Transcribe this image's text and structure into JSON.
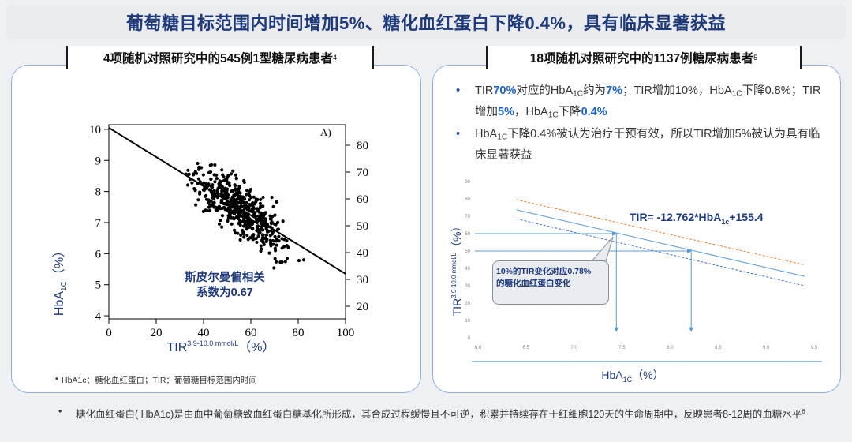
{
  "title": "葡萄糖目标范围内时间增加5%、糖化血红蛋白下降0.4%，具有临床显著获益",
  "left_panel": {
    "heading": "4项随机对照研究中的545例1型糖尿病患者",
    "heading_ref": "4",
    "annotation": [
      "斯皮尔曼偏相关",
      "系数为0.67"
    ],
    "footnote": "HbA1c：糖化血红蛋白；TIR：葡萄糖目标范围内时间"
  },
  "right_panel": {
    "heading": "18项随机对照研究中的1137例糖尿病患者",
    "heading_ref": "5",
    "bullet1": {
      "p1": "TIR",
      "p2": "70%",
      "p3": "对应的HbA",
      "p4": "1C",
      "p5": "约为",
      "p6": "7%",
      "p7": "；TIR增加10%，HbA",
      "p8": "1C",
      "p9": "下降0.8%；TIR增加",
      "p10": "5%",
      "p11": "，HbA",
      "p12": "1C",
      "p13": "下降",
      "p14": "0.4%"
    },
    "bullet2": {
      "p1": "HbA",
      "p2": "1C",
      "p3": "下降0.4%被认为治疗干预有效，所以TIR增加5%被认为具有临床显著获益"
    },
    "equation": {
      "p1": "TIR= -12.762*HbA",
      "p2": "1c",
      "p3": "+155.4"
    },
    "callout": [
      "10%的TIR变化对应0.78%",
      "的糖化血红蛋白变化"
    ]
  },
  "bottom_note": {
    "text": "糖化血红蛋白( HbA1c)是由血中葡萄糖致血红蛋白糖基化所形成，其合成过程缓慢且不可逆，积累并持续存在于红细胞120天的生命周期中，反映患者8-12周的血糖水平",
    "ref": "6"
  },
  "chart_data": [
    {
      "type": "scatter",
      "title": "A)",
      "xlabel": "TIR3.9-10.0 mmol/L (%)",
      "xlabel_main": "TIR",
      "xlabel_sup": "3.9-10.0 mmol/L",
      "xlabel_unit": "（%）",
      "ylabel": "HbA1C (%)",
      "ylabel_main": "HbA",
      "ylabel_sub": "1C",
      "ylabel_unit": "（%）",
      "xlim": [
        0,
        100
      ],
      "ylim": [
        4,
        10
      ],
      "x_ticks": [
        "0",
        "20",
        "40",
        "60",
        "80",
        "100"
      ],
      "y_ticks": [
        "4",
        "5",
        "6",
        "7",
        "8",
        "9",
        "10"
      ],
      "y2_ticks": [
        "20",
        "30",
        "40",
        "50",
        "60",
        "70",
        "80"
      ],
      "y2lim": [
        20,
        85
      ],
      "regression": {
        "x": [
          0,
          100
        ],
        "y": [
          10.05,
          5.35
        ]
      },
      "points_note": "545 patient points scattered along the regression line"
    },
    {
      "type": "line",
      "xlabel": "HbA1C (%)",
      "xlabel_main": "HbA",
      "xlabel_sub": "1C",
      "xlabel_unit": "（%）",
      "ylabel_main": "TIR",
      "ylabel_sup": "3.9-10.0 mmol/L",
      "ylabel_unit": "（%）",
      "xlim": [
        6.0,
        9.5
      ],
      "ylim": [
        0,
        90
      ],
      "x_ticks": [
        "6.0",
        "6.5",
        "7.0",
        "7.5",
        "8.0",
        "8.5",
        "9.0",
        "9.5"
      ],
      "y_ticks": [
        "0",
        "10",
        "20",
        "30",
        "40",
        "50",
        "60",
        "70",
        "80",
        "90"
      ],
      "series": [
        {
          "name": "fit",
          "x": [
            6.4,
            9.4
          ],
          "y": [
            73.7,
            35.4
          ],
          "style": "solid",
          "color": "#5b9bd5"
        },
        {
          "name": "upper CI",
          "x": [
            6.4,
            9.4
          ],
          "y": [
            79.5,
            42.0
          ],
          "style": "dashed",
          "color": "#ed7d31"
        },
        {
          "name": "lower CI",
          "x": [
            6.4,
            9.4
          ],
          "y": [
            68.5,
            30.0
          ],
          "style": "dashed",
          "color": "#4472c4"
        }
      ],
      "guides": [
        {
          "tir": 60,
          "hba1c": 7.44
        },
        {
          "tir": 50,
          "hba1c": 8.22
        }
      ]
    }
  ]
}
